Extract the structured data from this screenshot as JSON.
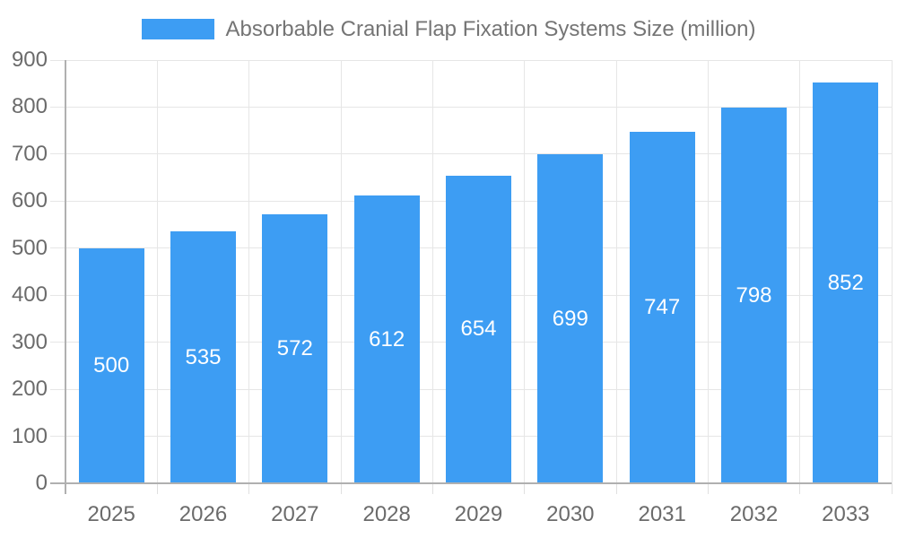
{
  "legend": {
    "label": "Absorbable Cranial Flap Fixation Systems Size (million)",
    "swatch_color": "#3D9DF3"
  },
  "chart_data": {
    "type": "bar",
    "title": "Absorbable Cranial Flap Fixation Systems Size (million)",
    "categories": [
      "2025",
      "2026",
      "2027",
      "2028",
      "2029",
      "2030",
      "2031",
      "2032",
      "2033"
    ],
    "values": [
      500,
      535,
      572,
      612,
      654,
      699,
      747,
      798,
      852
    ],
    "series": [
      {
        "name": "Absorbable Cranial Flap Fixation Systems Size (million)",
        "values": [
          500,
          535,
          572,
          612,
          654,
          699,
          747,
          798,
          852
        ]
      }
    ],
    "xlabel": "",
    "ylabel": "",
    "ylim": [
      0,
      900
    ],
    "ytick_interval": 100,
    "yticks": [
      0,
      100,
      200,
      300,
      400,
      500,
      600,
      700,
      800,
      900
    ],
    "grid": "horizontal-and-vertical",
    "legend_position": "top-center",
    "value_labels": "inside-center",
    "colors": {
      "bar": "#3D9DF3",
      "grid_line": "#e6e6e6",
      "axis_line": "#b0b0b0",
      "category_tick": "#e0e0e0",
      "tick_label_text": "#6b6b6b",
      "legend_text": "#757575",
      "value_label_text": "#ffffff",
      "background": "#ffffff"
    }
  }
}
